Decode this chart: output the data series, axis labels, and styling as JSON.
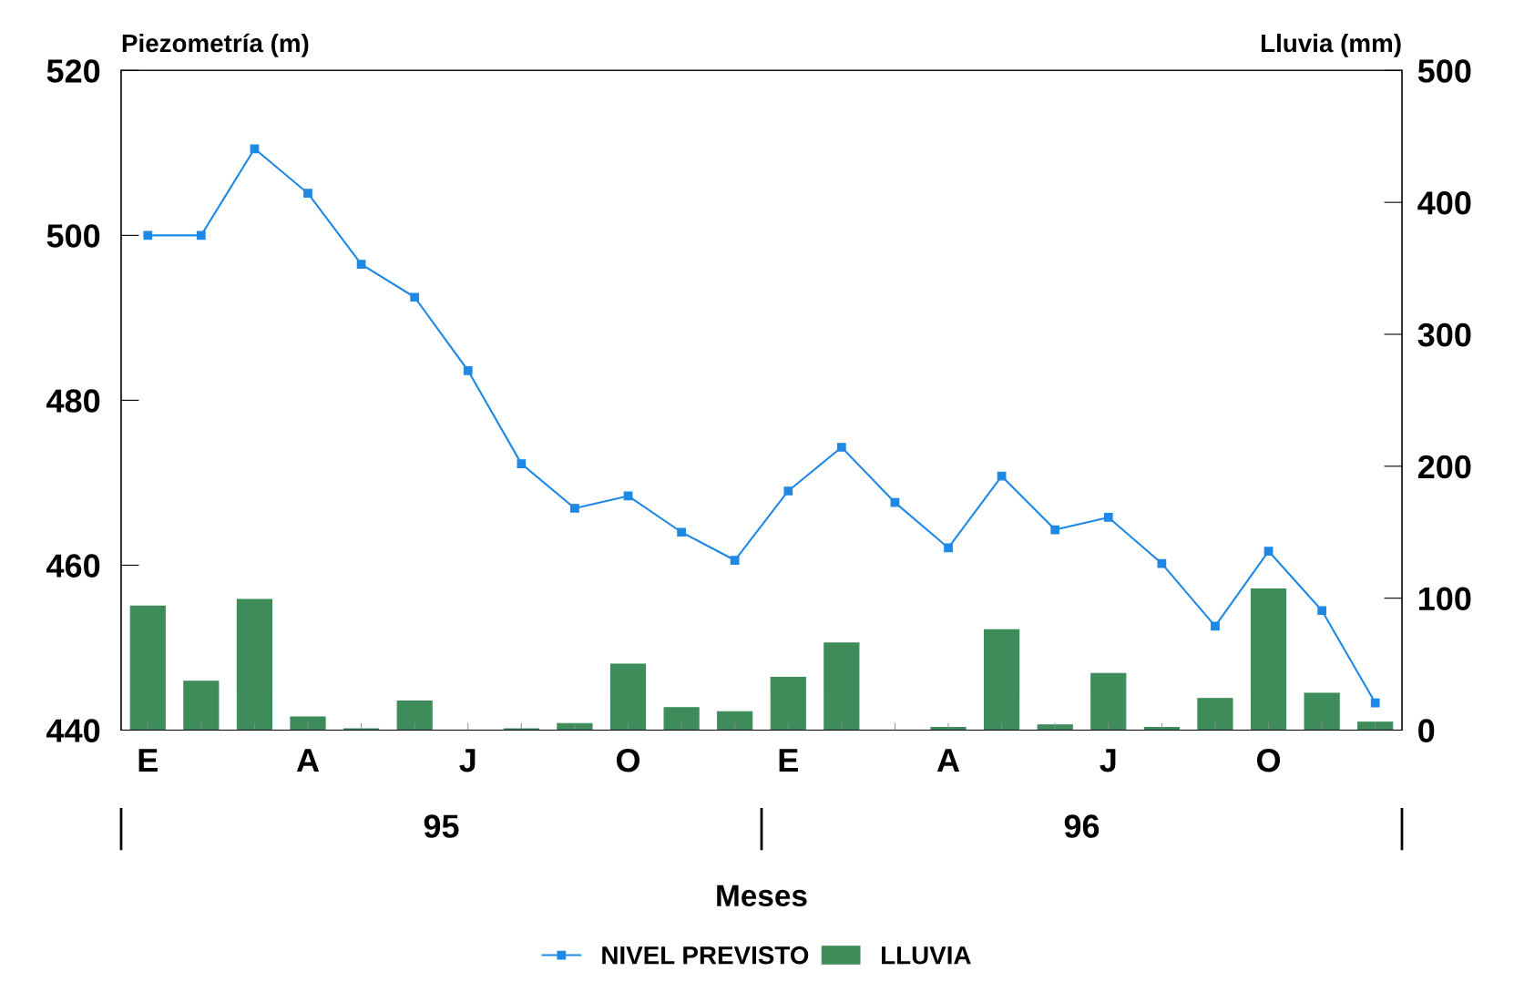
{
  "chart_data": {
    "type": "line",
    "categories": [
      "E",
      null,
      null,
      "A",
      null,
      null,
      "J",
      null,
      null,
      "O",
      null,
      null,
      "E",
      null,
      null,
      "A",
      null,
      null,
      "J",
      null,
      null,
      "O",
      null,
      null
    ],
    "annotations": [
      "95",
      "96"
    ],
    "xlabel": "Meses",
    "ylabel": "Piezometría (m)",
    "y2label": "Lluvia (mm)",
    "ylim": [
      440,
      520
    ],
    "yticks": [
      440,
      460,
      480,
      500,
      520
    ],
    "y2lim": [
      0,
      500
    ],
    "y2ticks": [
      0,
      100,
      200,
      300,
      400,
      500
    ],
    "legend": "bottom",
    "grid": false,
    "series": [
      {
        "name": "NIVEL PREVISTO",
        "marker": "square",
        "color": "#1e88e5",
        "values": [
          500,
          500,
          510.5,
          505.1,
          496.5,
          492.5,
          483.6,
          472.3,
          466.9,
          468.4,
          464,
          460.6,
          469,
          474.3,
          467.6,
          462.1,
          470.8,
          464.3,
          465.8,
          460.2,
          452.6,
          461.7,
          454.5,
          443.3
        ]
      },
      {
        "name": "LLUVIA",
        "type": "bar",
        "axis": "y2",
        "color": "#3d8c5a",
        "values": [
          94,
          37,
          99,
          10,
          1,
          22,
          0,
          1,
          5,
          50,
          17,
          14,
          40,
          66,
          0,
          2,
          76,
          4,
          43,
          2,
          24,
          107,
          28,
          6
        ]
      }
    ]
  }
}
